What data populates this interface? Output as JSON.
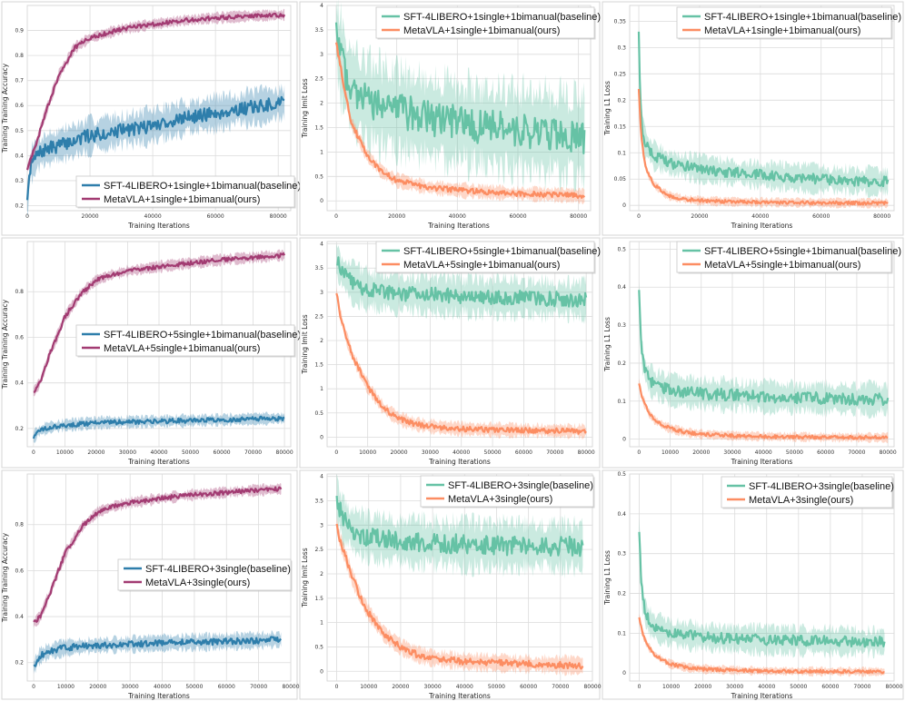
{
  "chart_data": [
    {
      "type": "line",
      "ylabel": "Training Training Accuracy",
      "xlabel": "Training Iterations",
      "xlim": [
        0,
        84000
      ],
      "ylim": [
        0.18,
        1.0
      ],
      "xticks": [
        0,
        20000,
        40000,
        60000,
        80000
      ],
      "yticks": [
        0.2,
        0.3,
        0.4,
        0.5,
        0.6,
        0.7,
        0.8,
        0.9
      ],
      "legend_position": "lower-right",
      "series": [
        {
          "name": "SFT-4LIBERO+1single+1bimanual(baseline)",
          "color": "#2e7eab",
          "x": [
            0,
            1000,
            3000,
            5000,
            10000,
            20000,
            30000,
            40000,
            50000,
            60000,
            70000,
            82000
          ],
          "y": [
            0.2,
            0.36,
            0.4,
            0.42,
            0.44,
            0.48,
            0.5,
            0.52,
            0.55,
            0.57,
            0.59,
            0.61
          ],
          "noise": 0.06
        },
        {
          "name": "MetaVLA+1single+1bimanual(ours)",
          "color": "#a23b72",
          "x": [
            0,
            1000,
            3000,
            5000,
            10000,
            15000,
            20000,
            30000,
            40000,
            50000,
            60000,
            70000,
            82000
          ],
          "y": [
            0.35,
            0.38,
            0.45,
            0.54,
            0.72,
            0.83,
            0.87,
            0.905,
            0.925,
            0.94,
            0.95,
            0.957,
            0.962
          ],
          "noise": 0.018
        }
      ]
    },
    {
      "type": "line",
      "ylabel": "Training lmit Loss",
      "xlabel": "Training Iterations",
      "xlim": [
        -3000,
        84000
      ],
      "ylim": [
        -0.2,
        4.0
      ],
      "xticks": [
        0,
        20000,
        40000,
        60000,
        80000
      ],
      "yticks": [
        0.0,
        0.5,
        1.0,
        1.5,
        2.0,
        2.5,
        3.0,
        3.5,
        4.0
      ],
      "legend_position": "top-right",
      "series": [
        {
          "name": "SFT-4LIBERO+1single+1bimanual(baseline)",
          "color": "#66c2a5",
          "x": [
            0,
            1000,
            3000,
            5000,
            10000,
            20000,
            30000,
            40000,
            50000,
            60000,
            70000,
            82000
          ],
          "y": [
            3.5,
            3.0,
            2.6,
            2.3,
            2.05,
            1.85,
            1.7,
            1.6,
            1.5,
            1.45,
            1.4,
            1.3
          ],
          "noise": 0.8
        },
        {
          "name": "MetaVLA+1single+1bimanual(ours)",
          "color": "#fc8d62",
          "x": [
            0,
            1000,
            3000,
            5000,
            10000,
            15000,
            20000,
            30000,
            40000,
            50000,
            60000,
            70000,
            82000
          ],
          "y": [
            3.2,
            2.9,
            2.2,
            1.6,
            0.95,
            0.6,
            0.42,
            0.28,
            0.22,
            0.18,
            0.15,
            0.13,
            0.1
          ],
          "noise": 0.12
        }
      ]
    },
    {
      "type": "line",
      "ylabel": "Training L1 Loss",
      "xlabel": "Training Iterations",
      "xlim": [
        -3000,
        84000
      ],
      "ylim": [
        -0.01,
        0.38
      ],
      "xticks": [
        0,
        20000,
        40000,
        60000,
        80000
      ],
      "yticks": [
        0.0,
        0.05,
        0.1,
        0.15,
        0.2,
        0.25,
        0.3,
        0.35
      ],
      "legend_position": "top-right",
      "series": [
        {
          "name": "SFT-4LIBERO+1single+1bimanual(baseline)",
          "color": "#66c2a5",
          "x": [
            0,
            500,
            1000,
            2000,
            3000,
            5000,
            10000,
            20000,
            30000,
            40000,
            50000,
            60000,
            70000,
            82000
          ],
          "y": [
            0.33,
            0.2,
            0.15,
            0.12,
            0.11,
            0.095,
            0.08,
            0.07,
            0.063,
            0.058,
            0.054,
            0.05,
            0.047,
            0.045
          ],
          "noise": 0.022
        },
        {
          "name": "MetaVLA+1single+1bimanual(ours)",
          "color": "#fc8d62",
          "x": [
            0,
            500,
            1000,
            2000,
            3000,
            5000,
            8000,
            10000,
            15000,
            20000,
            30000,
            40000,
            60000,
            82000
          ],
          "y": [
            0.22,
            0.16,
            0.12,
            0.08,
            0.06,
            0.04,
            0.025,
            0.018,
            0.012,
            0.009,
            0.007,
            0.006,
            0.005,
            0.004
          ],
          "noise": 0.007
        }
      ]
    },
    {
      "type": "line",
      "ylabel": "Training Training Accuracy",
      "xlabel": "Training Iterations",
      "xlim": [
        -2000,
        82000
      ],
      "ylim": [
        0.12,
        1.02
      ],
      "xticks": [
        0,
        10000,
        20000,
        30000,
        40000,
        50000,
        60000,
        70000,
        80000
      ],
      "yticks": [
        0.2,
        0.4,
        0.6,
        0.8
      ],
      "legend_position": "center-right",
      "series": [
        {
          "name": "SFT-4LIBERO+5single+1bimanual(baseline)",
          "color": "#2e7eab",
          "x": [
            0,
            1000,
            2000,
            5000,
            10000,
            20000,
            40000,
            60000,
            80000
          ],
          "y": [
            0.16,
            0.18,
            0.19,
            0.205,
            0.215,
            0.225,
            0.232,
            0.238,
            0.245
          ],
          "noise": 0.022
        },
        {
          "name": "MetaVLA+5single+1bimanual(ours)",
          "color": "#a23b72",
          "x": [
            0,
            2000,
            5000,
            8000,
            10000,
            15000,
            20000,
            25000,
            30000,
            40000,
            50000,
            60000,
            70000,
            80000
          ],
          "y": [
            0.36,
            0.4,
            0.52,
            0.62,
            0.69,
            0.79,
            0.85,
            0.875,
            0.89,
            0.91,
            0.925,
            0.94,
            0.95,
            0.96
          ],
          "noise": 0.02
        }
      ]
    },
    {
      "type": "line",
      "ylabel": "Training lmit Loss",
      "xlabel": "Training Iterations",
      "xlim": [
        -3000,
        82000
      ],
      "ylim": [
        -0.2,
        4.05
      ],
      "xticks": [
        0,
        10000,
        20000,
        30000,
        40000,
        50000,
        60000,
        70000,
        80000
      ],
      "yticks": [
        0.0,
        0.5,
        1.0,
        1.5,
        2.0,
        2.5,
        3.0,
        3.5,
        4.0
      ],
      "legend_position": "top-right",
      "series": [
        {
          "name": "SFT-4LIBERO+5single+1bimanual(baseline)",
          "color": "#66c2a5",
          "x": [
            0,
            1000,
            2000,
            5000,
            10000,
            20000,
            40000,
            60000,
            80000
          ],
          "y": [
            3.7,
            3.5,
            3.4,
            3.2,
            3.05,
            2.98,
            2.92,
            2.88,
            2.85
          ],
          "noise": 0.35
        },
        {
          "name": "MetaVLA+5single+1bimanual(ours)",
          "color": "#fc8d62",
          "x": [
            0,
            1000,
            3000,
            5000,
            8000,
            10000,
            15000,
            20000,
            25000,
            30000,
            40000,
            50000,
            60000,
            70000,
            80000
          ],
          "y": [
            3.0,
            2.6,
            2.1,
            1.7,
            1.3,
            1.05,
            0.6,
            0.38,
            0.27,
            0.22,
            0.17,
            0.15,
            0.14,
            0.13,
            0.12
          ],
          "noise": 0.12
        }
      ]
    },
    {
      "type": "line",
      "ylabel": "Training L1 Loss",
      "xlabel": "Training Iterations",
      "xlim": [
        -3000,
        82000
      ],
      "ylim": [
        -0.02,
        0.52
      ],
      "xticks": [
        0,
        10000,
        20000,
        30000,
        40000,
        50000,
        60000,
        70000,
        80000
      ],
      "yticks": [
        0.0,
        0.1,
        0.2,
        0.3,
        0.4,
        0.5
      ],
      "legend_position": "top-right",
      "series": [
        {
          "name": "SFT-4LIBERO+5single+1bimanual(baseline)",
          "color": "#66c2a5",
          "x": [
            0,
            500,
            1000,
            2000,
            3000,
            5000,
            10000,
            20000,
            40000,
            60000,
            80000
          ],
          "y": [
            0.38,
            0.28,
            0.22,
            0.18,
            0.16,
            0.145,
            0.13,
            0.12,
            0.112,
            0.107,
            0.105
          ],
          "noise": 0.035
        },
        {
          "name": "MetaVLA+5single+1bimanual(ours)",
          "color": "#fc8d62",
          "x": [
            0,
            500,
            1000,
            2000,
            3000,
            5000,
            8000,
            10000,
            15000,
            20000,
            30000,
            40000,
            60000,
            80000
          ],
          "y": [
            0.15,
            0.13,
            0.11,
            0.09,
            0.07,
            0.05,
            0.035,
            0.028,
            0.018,
            0.013,
            0.009,
            0.007,
            0.005,
            0.004
          ],
          "noise": 0.01
        }
      ]
    },
    {
      "type": "line",
      "ylabel": "Training Training Accuracy",
      "xlabel": "Training Iterations",
      "xlim": [
        -2000,
        80000
      ],
      "ylim": [
        0.12,
        1.02
      ],
      "xticks": [
        0,
        10000,
        20000,
        30000,
        40000,
        50000,
        60000,
        70000,
        80000
      ],
      "yticks": [
        0.2,
        0.4,
        0.6,
        0.8
      ],
      "legend_position": "center-right",
      "series": [
        {
          "name": "SFT-4LIBERO+3single(baseline)",
          "color": "#2e7eab",
          "x": [
            0,
            1000,
            2000,
            5000,
            10000,
            20000,
            40000,
            60000,
            77000
          ],
          "y": [
            0.18,
            0.21,
            0.23,
            0.25,
            0.265,
            0.275,
            0.285,
            0.292,
            0.3
          ],
          "noise": 0.03
        },
        {
          "name": "MetaVLA+3single(ours)",
          "color": "#a23b72",
          "x": [
            0,
            2000,
            5000,
            8000,
            10000,
            15000,
            20000,
            25000,
            30000,
            40000,
            50000,
            60000,
            70000,
            77000
          ],
          "y": [
            0.37,
            0.4,
            0.5,
            0.61,
            0.68,
            0.79,
            0.855,
            0.88,
            0.895,
            0.915,
            0.93,
            0.94,
            0.95,
            0.955
          ],
          "noise": 0.02
        }
      ]
    },
    {
      "type": "line",
      "ylabel": "Training lmit Loss",
      "xlabel": "Training Iterations",
      "xlim": [
        -3000,
        80000
      ],
      "ylim": [
        -0.2,
        4.05
      ],
      "xticks": [
        0,
        10000,
        20000,
        30000,
        40000,
        50000,
        60000,
        70000,
        80000
      ],
      "yticks": [
        0.0,
        0.5,
        1.0,
        1.5,
        2.0,
        2.5,
        3.0,
        3.5,
        4.0
      ],
      "legend_position": "top-right",
      "series": [
        {
          "name": "SFT-4LIBERO+3single(baseline)",
          "color": "#66c2a5",
          "x": [
            0,
            1000,
            2000,
            5000,
            10000,
            20000,
            40000,
            60000,
            77000
          ],
          "y": [
            3.6,
            3.3,
            3.1,
            2.9,
            2.75,
            2.67,
            2.6,
            2.58,
            2.56
          ],
          "noise": 0.45
        },
        {
          "name": "MetaVLA+3single(ours)",
          "color": "#fc8d62",
          "x": [
            0,
            1000,
            3000,
            5000,
            8000,
            10000,
            15000,
            20000,
            25000,
            30000,
            40000,
            50000,
            60000,
            70000,
            77000
          ],
          "y": [
            3.0,
            2.7,
            2.3,
            1.9,
            1.45,
            1.2,
            0.75,
            0.5,
            0.35,
            0.27,
            0.2,
            0.17,
            0.15,
            0.13,
            0.12
          ],
          "noise": 0.15
        }
      ]
    },
    {
      "type": "line",
      "ylabel": "Training L1 Loss",
      "xlabel": "Training Iterations",
      "xlim": [
        -3000,
        80000
      ],
      "ylim": [
        -0.02,
        0.5
      ],
      "xticks": [
        0,
        10000,
        20000,
        30000,
        40000,
        50000,
        60000,
        70000,
        80000
      ],
      "yticks": [
        0.0,
        0.1,
        0.2,
        0.3,
        0.4,
        0.5
      ],
      "legend_position": "top-right",
      "series": [
        {
          "name": "SFT-4LIBERO+3single(baseline)",
          "color": "#66c2a5",
          "x": [
            0,
            500,
            1000,
            2000,
            3000,
            5000,
            10000,
            20000,
            40000,
            60000,
            77000
          ],
          "y": [
            0.36,
            0.25,
            0.19,
            0.15,
            0.13,
            0.115,
            0.1,
            0.09,
            0.083,
            0.08,
            0.078
          ],
          "noise": 0.03
        },
        {
          "name": "MetaVLA+3single(ours)",
          "color": "#fc8d62",
          "x": [
            0,
            500,
            1000,
            2000,
            3000,
            5000,
            8000,
            10000,
            15000,
            20000,
            30000,
            40000,
            60000,
            77000
          ],
          "y": [
            0.14,
            0.12,
            0.1,
            0.08,
            0.065,
            0.045,
            0.03,
            0.022,
            0.014,
            0.01,
            0.007,
            0.005,
            0.004,
            0.003
          ],
          "noise": 0.009
        }
      ]
    }
  ]
}
